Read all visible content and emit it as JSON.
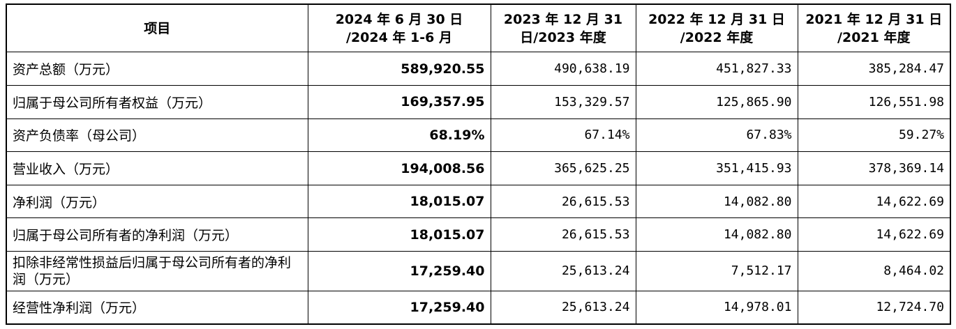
{
  "header": {
    "item": "项目",
    "cols": [
      {
        "line1": "2024 年 6 月 30 日",
        "line2": "/2024 年 1-6 月"
      },
      {
        "line1": "2023 年 12 月 31",
        "line2": "日/2023 年度"
      },
      {
        "line1": "2022 年 12 月 31 日",
        "line2": "/2022 年度"
      },
      {
        "line1": "2021 年 12 月 31 日",
        "line2": "/2021 年度"
      }
    ]
  },
  "rows": [
    {
      "label": "资产总额（万元）",
      "values": [
        "589,920.55",
        "490,638.19",
        "451,827.33",
        "385,284.47"
      ]
    },
    {
      "label": "归属于母公司所有者权益（万元）",
      "values": [
        "169,357.95",
        "153,329.57",
        "125,865.90",
        "126,551.98"
      ]
    },
    {
      "label": "资产负债率（母公司）",
      "values": [
        "68.19%",
        "67.14%",
        "67.83%",
        "59.27%"
      ]
    },
    {
      "label": "营业收入（万元）",
      "values": [
        "194,008.56",
        "365,625.25",
        "351,415.93",
        "378,369.14"
      ]
    },
    {
      "label": "净利润（万元）",
      "values": [
        "18,015.07",
        "26,615.53",
        "14,082.80",
        "14,622.69"
      ]
    },
    {
      "label": "归属于母公司所有者的净利润（万元）",
      "values": [
        "18,015.07",
        "26,615.53",
        "14,082.80",
        "14,622.69"
      ]
    },
    {
      "label": "扣除非经常性损益后归属于母公司所有者的净利润（万元）",
      "values": [
        "17,259.40",
        "25,613.24",
        "7,512.17",
        "8,464.02"
      ]
    },
    {
      "label": "经营性净利润（万元）",
      "values": [
        "17,259.40",
        "25,613.24",
        "14,978.01",
        "12,724.70"
      ]
    }
  ]
}
